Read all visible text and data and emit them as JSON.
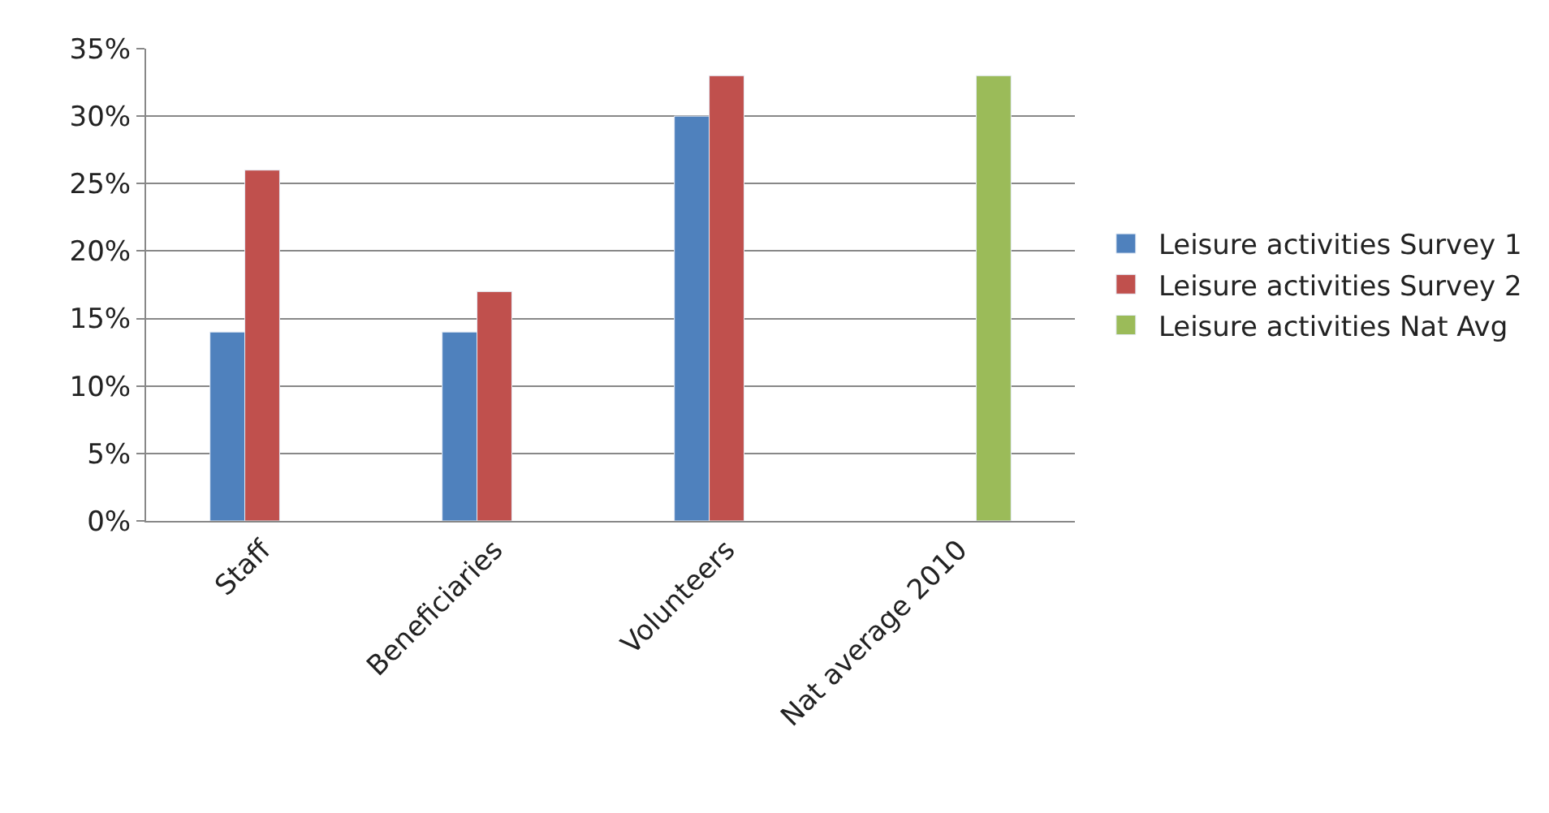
{
  "chart_data": {
    "type": "bar",
    "categories": [
      "Staff",
      "Beneficiaries",
      "Volunteers",
      "Nat average 2010"
    ],
    "series": [
      {
        "name": "Leisure activities Survey 1",
        "color": "#4f81bd",
        "values": [
          14,
          14,
          30,
          null
        ]
      },
      {
        "name": "Leisure activities Survey 2",
        "color": "#c0504d",
        "values": [
          26,
          17,
          33,
          null
        ]
      },
      {
        "name": "Leisure activities Nat Avg",
        "color": "#9bbb59",
        "values": [
          null,
          null,
          null,
          33
        ]
      }
    ],
    "ylim": [
      0,
      35
    ],
    "yticks": [
      {
        "value": 0,
        "label": "0%"
      },
      {
        "value": 5,
        "label": "5%"
      },
      {
        "value": 10,
        "label": "10%"
      },
      {
        "value": 15,
        "label": "15%"
      },
      {
        "value": 20,
        "label": "20%"
      },
      {
        "value": 25,
        "label": "25%"
      },
      {
        "value": 30,
        "label": "30%"
      },
      {
        "value": 35,
        "label": "35%"
      }
    ],
    "grid": "y",
    "legend": "right"
  }
}
